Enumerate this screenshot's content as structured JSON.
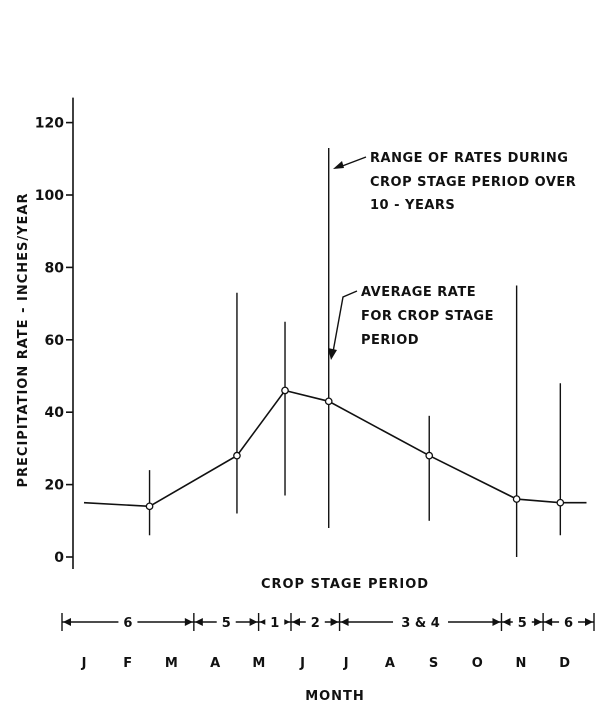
{
  "chart_data": {
    "type": "line",
    "title": "",
    "ylabel": "PRECIPITATION RATE - INCHES/YEAR",
    "xlabel": "MONTH",
    "ylim": [
      0,
      120
    ],
    "yticks": [
      0,
      20,
      40,
      60,
      80,
      100,
      120
    ],
    "months": [
      "J",
      "F",
      "M",
      "A",
      "M",
      "J",
      "J",
      "A",
      "S",
      "O",
      "N",
      "D"
    ],
    "average_rate": [
      {
        "x": 0.0,
        "y": 15
      },
      {
        "x": 1.5,
        "y": 14
      },
      {
        "x": 3.5,
        "y": 28
      },
      {
        "x": 4.6,
        "y": 46
      },
      {
        "x": 5.6,
        "y": 43
      },
      {
        "x": 7.9,
        "y": 28
      },
      {
        "x": 9.9,
        "y": 16
      },
      {
        "x": 10.9,
        "y": 15
      },
      {
        "x": 11.5,
        "y": 15
      }
    ],
    "ranges": [
      {
        "x": 1.5,
        "low": 6,
        "high": 24
      },
      {
        "x": 3.5,
        "low": 12,
        "high": 73
      },
      {
        "x": 4.6,
        "low": 17,
        "high": 65
      },
      {
        "x": 5.6,
        "low": 8,
        "high": 113
      },
      {
        "x": 7.9,
        "low": 10,
        "high": 39
      },
      {
        "x": 9.9,
        "low": 0,
        "high": 75
      },
      {
        "x": 10.9,
        "low": 6,
        "high": 48
      }
    ],
    "crop_stage_title": "CROP STAGE PERIOD",
    "crop_stages": [
      {
        "label": "6",
        "start": 0.0,
        "end": 2.85
      },
      {
        "label": "5",
        "start": 2.85,
        "end": 4.25
      },
      {
        "label": "1",
        "start": 4.25,
        "end": 4.95
      },
      {
        "label": "2",
        "start": 4.95,
        "end": 6.0
      },
      {
        "label": "3 & 4",
        "start": 6.0,
        "end": 9.5
      },
      {
        "label": "5",
        "start": 9.5,
        "end": 10.4
      },
      {
        "label": "6",
        "start": 10.4,
        "end": 11.5
      }
    ],
    "annotations": {
      "range": [
        "RANGE OF RATES DURING",
        "CROP STAGE PERIOD OVER",
        "10 - YEARS"
      ],
      "average": [
        "AVERAGE RATE",
        "FOR CROP STAGE",
        "PERIOD"
      ]
    }
  }
}
